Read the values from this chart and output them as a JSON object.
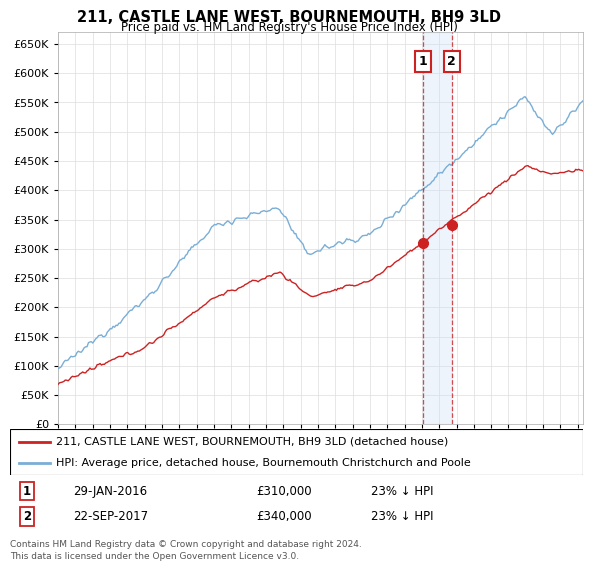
{
  "title": "211, CASTLE LANE WEST, BOURNEMOUTH, BH9 3LD",
  "subtitle": "Price paid vs. HM Land Registry's House Price Index (HPI)",
  "ylabel_values": [
    0,
    50000,
    100000,
    150000,
    200000,
    250000,
    300000,
    350000,
    400000,
    450000,
    500000,
    550000,
    600000,
    650000
  ],
  "ylim": [
    0,
    670000
  ],
  "xlim_start": 1995.0,
  "xlim_end": 2025.3,
  "sale1_date": 2016.08,
  "sale1_price": 310000,
  "sale2_date": 2017.73,
  "sale2_price": 340000,
  "hpi_color": "#7aaed6",
  "price_color": "#cc2222",
  "shading_color": "#cce0f5",
  "dashed_color": "#cc2222",
  "grid_color": "#dddddd",
  "background_color": "#ffffff",
  "legend_label_price": "211, CASTLE LANE WEST, BOURNEMOUTH, BH9 3LD (detached house)",
  "legend_label_hpi": "HPI: Average price, detached house, Bournemouth Christchurch and Poole",
  "table_row1": [
    "1",
    "29-JAN-2016",
    "£310,000",
    "23% ↓ HPI"
  ],
  "table_row2": [
    "2",
    "22-SEP-2017",
    "£340,000",
    "23% ↓ HPI"
  ],
  "footer": "Contains HM Land Registry data © Crown copyright and database right 2024.\nThis data is licensed under the Open Government Licence v3.0."
}
